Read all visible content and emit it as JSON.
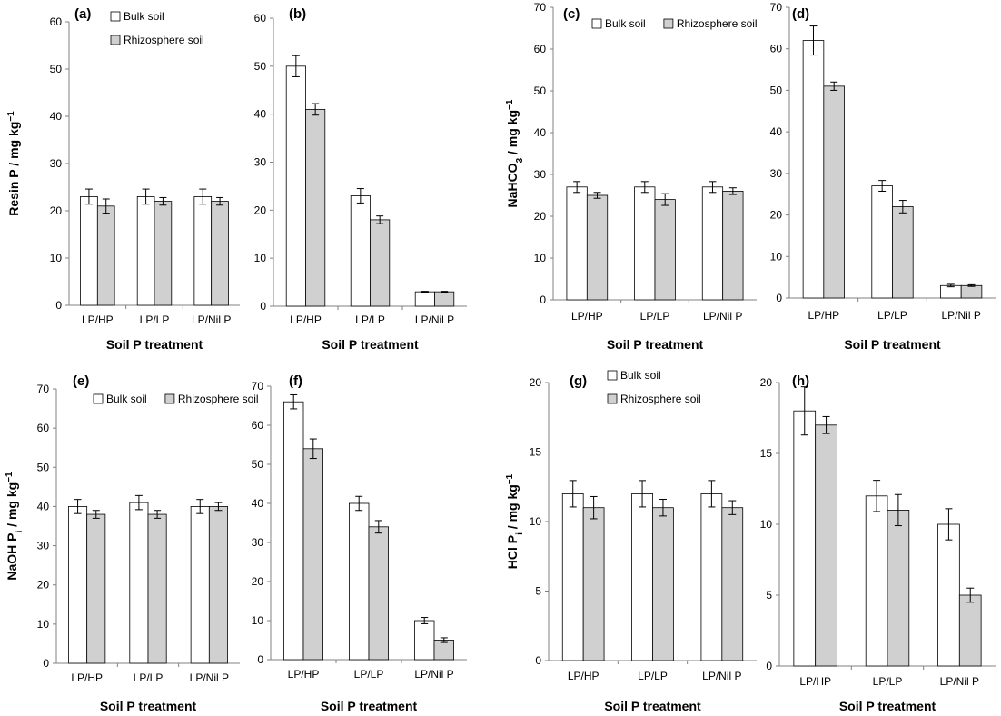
{
  "chart_data": [
    {
      "panel": "(a)",
      "type": "bar",
      "categories": [
        "LP/HP",
        "LP/LP",
        "LP/Nil P"
      ],
      "series": [
        {
          "name": "Bulk soil",
          "values": [
            23,
            23,
            23
          ],
          "errors": [
            1.6,
            1.6,
            1.6
          ]
        },
        {
          "name": "Rhizosphere soil",
          "values": [
            21,
            22,
            22
          ],
          "errors": [
            1.5,
            0.8,
            0.8
          ]
        }
      ],
      "ylim": [
        0,
        60
      ],
      "yticks": [
        0,
        10,
        20,
        30,
        40,
        50,
        60
      ],
      "xlabel": "Soil P treatment",
      "ylabel": "Resin P / mg kg",
      "ylabel_sup": "−1",
      "legend": "top-left",
      "grid": false
    },
    {
      "panel": "(b)",
      "type": "bar",
      "categories": [
        "LP/HP",
        "LP/LP",
        "LP/Nil P"
      ],
      "series": [
        {
          "name": "Bulk soil",
          "values": [
            50,
            23,
            3
          ],
          "errors": [
            2.2,
            1.5,
            0.1
          ]
        },
        {
          "name": "Rhizosphere soil",
          "values": [
            41,
            18,
            3
          ],
          "errors": [
            1.2,
            0.8,
            0.1
          ]
        }
      ],
      "ylim": [
        0,
        60
      ],
      "yticks": [
        0,
        10,
        20,
        30,
        40,
        50,
        60
      ],
      "xlabel": "Soil P treatment",
      "ylabel": "",
      "legend": "none",
      "grid": false
    },
    {
      "panel": "(c)",
      "type": "bar",
      "categories": [
        "LP/HP",
        "LP/LP",
        "LP/Nil P"
      ],
      "series": [
        {
          "name": "Bulk soil",
          "values": [
            27,
            27,
            27
          ],
          "errors": [
            1.3,
            1.3,
            1.3
          ]
        },
        {
          "name": "Rhizosphere soil",
          "values": [
            25,
            24,
            26
          ],
          "errors": [
            0.7,
            1.4,
            0.8
          ]
        }
      ],
      "ylim": [
        0,
        70
      ],
      "yticks": [
        0,
        10,
        20,
        30,
        40,
        50,
        60,
        70
      ],
      "xlabel": "Soil P treatment",
      "ylabel": "NaHCO",
      "ylabel_sub": "3",
      "ylabel_rest": " / mg kg",
      "ylabel_sup": "−1",
      "legend": "top",
      "grid": false
    },
    {
      "panel": "(d)",
      "type": "bar",
      "categories": [
        "LP/HP",
        "LP/LP",
        "LP/Nil P"
      ],
      "series": [
        {
          "name": "Bulk soil",
          "values": [
            62,
            27,
            3
          ],
          "errors": [
            3.5,
            1.3,
            0.3
          ]
        },
        {
          "name": "Rhizosphere soil",
          "values": [
            51,
            22,
            3
          ],
          "errors": [
            1,
            1.5,
            0.2
          ]
        }
      ],
      "ylim": [
        0,
        70
      ],
      "yticks": [
        0,
        10,
        20,
        30,
        40,
        50,
        60,
        70
      ],
      "xlabel": "Soil P treatment",
      "ylabel": "",
      "legend": "none",
      "grid": false
    },
    {
      "panel": "(e)",
      "type": "bar",
      "categories": [
        "LP/HP",
        "LP/LP",
        "LP/Nil P"
      ],
      "series": [
        {
          "name": "Bulk soil",
          "values": [
            40,
            41,
            40
          ],
          "errors": [
            1.8,
            1.8,
            1.8
          ]
        },
        {
          "name": "Rhizosphere soil",
          "values": [
            38,
            38,
            40
          ],
          "errors": [
            1,
            1,
            1
          ]
        }
      ],
      "ylim": [
        0,
        70
      ],
      "yticks": [
        0,
        10,
        20,
        30,
        40,
        50,
        60,
        70
      ],
      "xlabel": "Soil P treatment",
      "ylabel": "NaOH P",
      "ylabel_sub": "i",
      "ylabel_rest": " / mg kg",
      "ylabel_sup": "−1",
      "legend": "top",
      "grid": false
    },
    {
      "panel": "(f)",
      "type": "bar",
      "categories": [
        "LP/HP",
        "LP/LP",
        "LP/Nil P"
      ],
      "series": [
        {
          "name": "Bulk soil",
          "values": [
            66,
            40,
            10
          ],
          "errors": [
            1.8,
            1.8,
            0.8
          ]
        },
        {
          "name": "Rhizosphere soil",
          "values": [
            54,
            34,
            5
          ],
          "errors": [
            2.5,
            1.6,
            0.6
          ]
        }
      ],
      "ylim": [
        0,
        70
      ],
      "yticks": [
        0,
        10,
        20,
        30,
        40,
        50,
        60,
        70
      ],
      "xlabel": "Soil P treatment",
      "ylabel": "",
      "legend": "none",
      "grid": false
    },
    {
      "panel": "(g)",
      "type": "bar",
      "categories": [
        "LP/HP",
        "LP/LP",
        "LP/Nil P"
      ],
      "series": [
        {
          "name": "Bulk soil",
          "values": [
            12,
            12,
            12
          ],
          "errors": [
            0.95,
            0.95,
            0.95
          ]
        },
        {
          "name": "Rhizosphere soil",
          "values": [
            11,
            11,
            11
          ],
          "errors": [
            0.8,
            0.6,
            0.5
          ]
        }
      ],
      "ylim": [
        0,
        20
      ],
      "yticks": [
        0,
        5,
        10,
        15,
        20
      ],
      "xlabel": "Soil P treatment",
      "ylabel": "HCl P",
      "ylabel_sub": "i",
      "ylabel_rest": " / mg kg",
      "ylabel_sup": "−1",
      "legend": "top-left",
      "grid": false
    },
    {
      "panel": "(h)",
      "type": "bar",
      "categories": [
        "LP/HP",
        "LP/LP",
        "LP/Nil P"
      ],
      "series": [
        {
          "name": "Bulk soil",
          "values": [
            18,
            12,
            10
          ],
          "errors": [
            1.7,
            1.1,
            1.1
          ]
        },
        {
          "name": "Rhizosphere soil",
          "values": [
            17,
            11,
            5
          ],
          "errors": [
            0.6,
            1.1,
            0.5
          ]
        }
      ],
      "ylim": [
        0,
        20
      ],
      "yticks": [
        0,
        5,
        10,
        15,
        20
      ],
      "xlabel": "Soil P treatment",
      "ylabel": "",
      "legend": "none",
      "grid": false
    }
  ],
  "colors": {
    "bulk": "#ffffff",
    "rhizosphere": "#d0d0d0",
    "outline": "#000000",
    "axis": "#808080"
  }
}
